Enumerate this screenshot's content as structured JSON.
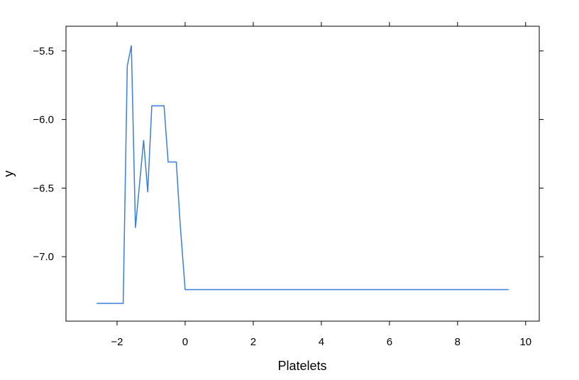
{
  "chart_data": {
    "type": "line",
    "xlabel": "Platelets",
    "ylabel": "y",
    "xlim": [
      -3.5,
      10.4
    ],
    "ylim": [
      -7.47,
      -5.32
    ],
    "x_ticks": [
      -2,
      0,
      2,
      4,
      6,
      8,
      10
    ],
    "x_tick_labels": [
      "−2",
      "0",
      "2",
      "4",
      "6",
      "8",
      "10"
    ],
    "y_ticks": [
      -5.5,
      -6.0,
      -6.5,
      -7.0
    ],
    "y_tick_labels": [
      "−5.5",
      "−6.0",
      "−6.5",
      "−7.0"
    ],
    "grid": false,
    "line_color": "#3a7fdc",
    "series": [
      {
        "x": [
          -2.6,
          -1.82,
          -1.7,
          -1.58,
          -1.46,
          -1.22,
          -1.1,
          -0.98,
          -0.62,
          -0.5,
          -0.26,
          -0.15,
          0.0,
          9.5
        ],
        "y": [
          -7.34,
          -7.34,
          -5.61,
          -5.46,
          -6.79,
          -6.15,
          -6.53,
          -5.9,
          -5.9,
          -6.31,
          -6.31,
          -6.75,
          -7.24,
          -7.24
        ]
      }
    ]
  }
}
